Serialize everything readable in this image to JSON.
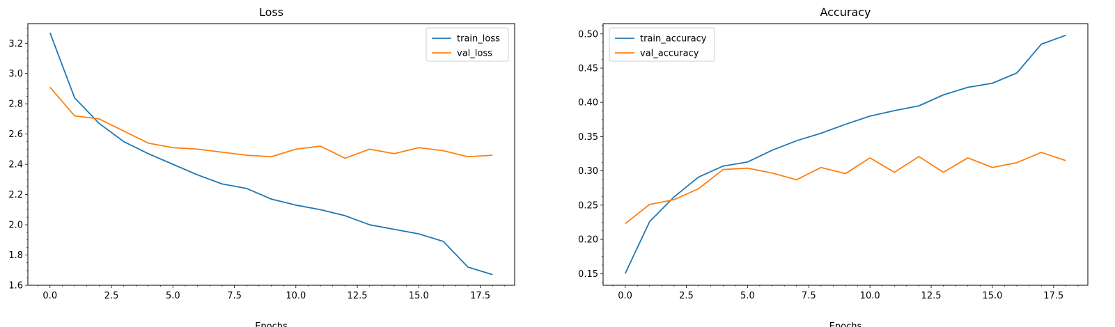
{
  "colors": {
    "train": "#1f77b4",
    "val": "#ff7f0e"
  },
  "chart_data": [
    {
      "type": "line",
      "title": "Loss",
      "xlabel": "Epochs",
      "ylabel": "",
      "xlim": [
        -0.9,
        18.9
      ],
      "ylim": [
        1.6,
        3.33
      ],
      "xticks": [
        0.0,
        2.5,
        5.0,
        7.5,
        10.0,
        12.5,
        15.0,
        17.5
      ],
      "xtick_labels": [
        "0.0",
        "2.5",
        "5.0",
        "7.5",
        "10.0",
        "12.5",
        "15.0",
        "17.5"
      ],
      "yticks": [
        1.6,
        1.8,
        2.0,
        2.2,
        2.4,
        2.6,
        2.8,
        3.0,
        3.2
      ],
      "ytick_labels": [
        "1.6",
        "1.8",
        "2.0",
        "2.2",
        "2.4",
        "2.6",
        "2.8",
        "3.0",
        "3.2"
      ],
      "legend": "top-right",
      "grid": false,
      "x": [
        0,
        1,
        2,
        3,
        4,
        5,
        6,
        7,
        8,
        9,
        10,
        11,
        12,
        13,
        14,
        15,
        16,
        17,
        18
      ],
      "series": [
        {
          "name": "train_loss",
          "color": "#1f77b4",
          "values": [
            3.27,
            2.84,
            2.67,
            2.55,
            2.47,
            2.4,
            2.33,
            2.27,
            2.24,
            2.17,
            2.13,
            2.1,
            2.06,
            2.0,
            1.97,
            1.94,
            1.89,
            1.72,
            1.67
          ]
        },
        {
          "name": "val_loss",
          "color": "#ff7f0e",
          "values": [
            2.91,
            2.72,
            2.7,
            2.62,
            2.54,
            2.51,
            2.5,
            2.48,
            2.46,
            2.45,
            2.5,
            2.52,
            2.44,
            2.5,
            2.47,
            2.51,
            2.49,
            2.45,
            2.46
          ]
        }
      ]
    },
    {
      "type": "line",
      "title": "Accuracy",
      "xlabel": "Epochs",
      "ylabel": "",
      "xlim": [
        -0.9,
        18.9
      ],
      "ylim": [
        0.133,
        0.515
      ],
      "xticks": [
        0.0,
        2.5,
        5.0,
        7.5,
        10.0,
        12.5,
        15.0,
        17.5
      ],
      "xtick_labels": [
        "0.0",
        "2.5",
        "5.0",
        "7.5",
        "10.0",
        "12.5",
        "15.0",
        "17.5"
      ],
      "yticks": [
        0.15,
        0.2,
        0.25,
        0.3,
        0.35,
        0.4,
        0.45,
        0.5
      ],
      "ytick_labels": [
        "0.15",
        "0.20",
        "0.25",
        "0.30",
        "0.35",
        "0.40",
        "0.45",
        "0.50"
      ],
      "legend": "top-left",
      "grid": false,
      "x": [
        0,
        1,
        2,
        3,
        4,
        5,
        6,
        7,
        8,
        9,
        10,
        11,
        12,
        13,
        14,
        15,
        16,
        17,
        18
      ],
      "series": [
        {
          "name": "train_accuracy",
          "color": "#1f77b4",
          "values": [
            0.15,
            0.226,
            0.262,
            0.291,
            0.307,
            0.313,
            0.33,
            0.344,
            0.355,
            0.368,
            0.38,
            0.388,
            0.395,
            0.411,
            0.422,
            0.428,
            0.443,
            0.485,
            0.498
          ]
        },
        {
          "name": "val_accuracy",
          "color": "#ff7f0e",
          "values": [
            0.223,
            0.251,
            0.258,
            0.274,
            0.302,
            0.304,
            0.297,
            0.287,
            0.305,
            0.296,
            0.319,
            0.298,
            0.321,
            0.298,
            0.319,
            0.305,
            0.312,
            0.327,
            0.315
          ]
        }
      ]
    }
  ]
}
